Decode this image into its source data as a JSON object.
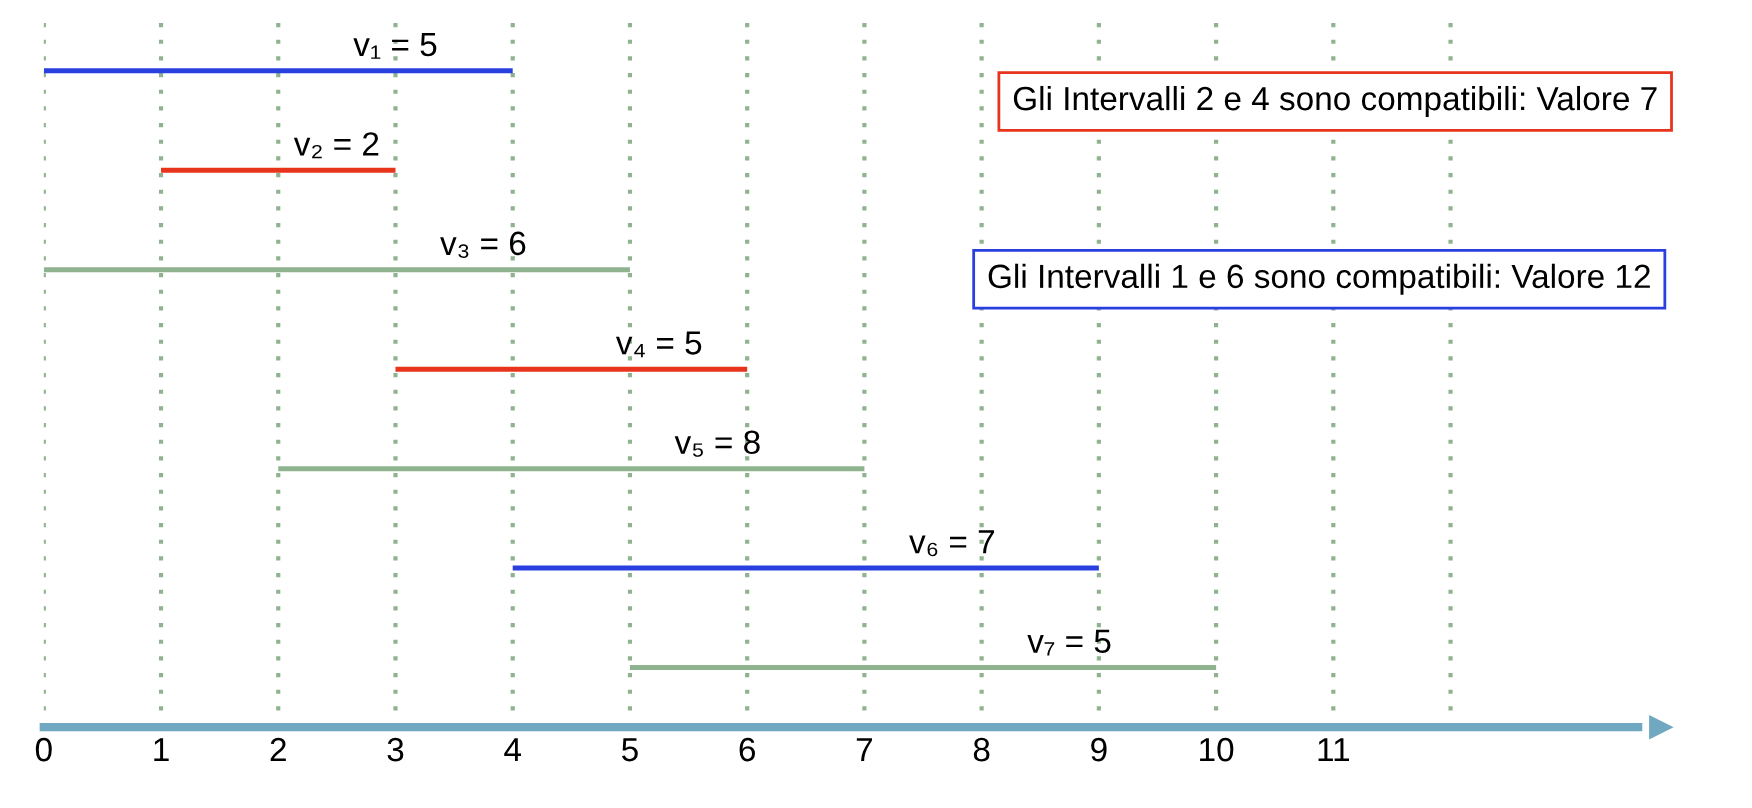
{
  "chart_data": {
    "type": "bar",
    "orientation": "horizontal",
    "categories": [
      null,
      null,
      null,
      null,
      null,
      null,
      null
    ],
    "base": [
      0,
      1,
      0,
      3,
      2,
      4,
      5
    ],
    "values": [
      4,
      2,
      5,
      3,
      5,
      5,
      5
    ],
    "colors": [
      "#2a3fe0",
      "#e8341c",
      "#8fb38f",
      "#e8341c",
      "#8fb38f",
      "#2a3fe0",
      "#8fb38f"
    ],
    "xlim": [
      0,
      13.6
    ],
    "xticks": [
      0,
      1,
      2,
      3,
      4,
      5,
      6,
      7,
      8,
      9,
      10,
      11,
      {
        "value": 12,
        "label": null
      }
    ],
    "grid": "x",
    "tick_labels": "x",
    "annotations": [
      "v₁ = 5",
      "v₂ = 2",
      "v₃ = 6",
      "v₄ = 5",
      "v₅ = 8",
      "v₆ = 7",
      "v₇ = 5",
      "Gli Intervalli 2 e 4 sono compatibili: Valore 7",
      "Gli Intervalli 1 e 6 sono compatibili: Valore 12"
    ]
  }
}
